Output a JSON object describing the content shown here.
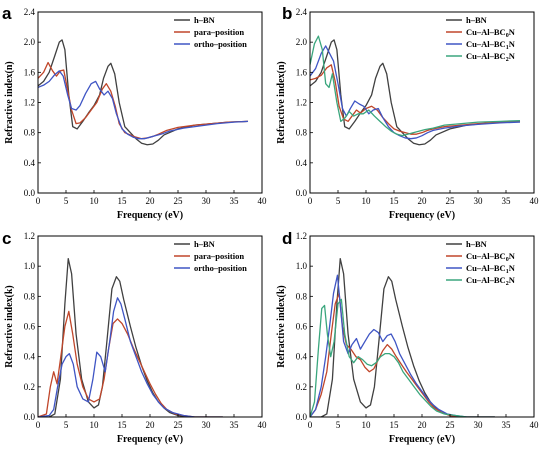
{
  "chart_data": [
    {
      "panel": "a",
      "type": "line",
      "xlabel": "Frequency (eV)",
      "ylabel": "Refractive index(n)",
      "xlim": [
        0,
        40
      ],
      "ylim": [
        0.0,
        2.4
      ],
      "xticks": [
        0,
        5,
        10,
        15,
        20,
        25,
        30,
        35,
        40
      ],
      "yticks": [
        0.0,
        0.4,
        0.8,
        1.2,
        1.6,
        2.0,
        2.4
      ],
      "legend_position": "top-right",
      "series": [
        {
          "name": "h–BN",
          "color": "#404040",
          "x": [
            0,
            1,
            2,
            3,
            3.8,
            4.3,
            4.8,
            5.5,
            6.2,
            7,
            8,
            9,
            10,
            11,
            11.7,
            12.5,
            13,
            13.7,
            14.5,
            15.5,
            16.5,
            17.5,
            18.5,
            19.5,
            20.5,
            21.5,
            22.5,
            25,
            28,
            31,
            34,
            37.5
          ],
          "y": [
            1.42,
            1.48,
            1.6,
            1.82,
            2.0,
            2.03,
            1.9,
            1.3,
            0.88,
            0.85,
            0.95,
            1.06,
            1.16,
            1.3,
            1.52,
            1.68,
            1.72,
            1.58,
            1.2,
            0.88,
            0.8,
            0.72,
            0.66,
            0.64,
            0.65,
            0.7,
            0.77,
            0.85,
            0.9,
            0.92,
            0.94,
            0.95
          ]
        },
        {
          "name": "para–position",
          "color": "#c0462a",
          "x": [
            0,
            1,
            1.8,
            2.6,
            3.3,
            4,
            4.6,
            5.2,
            6,
            6.8,
            7.5,
            8.5,
            9.5,
            10.5,
            11.5,
            12.2,
            13,
            13.8,
            14.5,
            15.5,
            16.5,
            17.5,
            18.5,
            19.5,
            20.5,
            21.5,
            23,
            25,
            28,
            31,
            34,
            37.5
          ],
          "y": [
            1.52,
            1.6,
            1.73,
            1.62,
            1.55,
            1.62,
            1.63,
            1.4,
            1.1,
            0.92,
            0.93,
            1.0,
            1.1,
            1.2,
            1.38,
            1.45,
            1.35,
            1.15,
            0.92,
            0.8,
            0.77,
            0.74,
            0.72,
            0.73,
            0.75,
            0.78,
            0.83,
            0.87,
            0.9,
            0.92,
            0.94,
            0.95
          ]
        },
        {
          "name": "ortho–position",
          "color": "#3f55c4",
          "x": [
            0,
            1,
            2,
            3,
            3.8,
            4.5,
            5.3,
            6,
            6.8,
            7.5,
            8.5,
            9.5,
            10.3,
            11,
            11.8,
            12.5,
            13.3,
            14,
            15,
            16,
            17,
            18,
            19,
            20,
            21,
            22,
            23.5,
            26,
            29,
            32,
            35,
            37.5
          ],
          "y": [
            1.4,
            1.43,
            1.48,
            1.57,
            1.62,
            1.55,
            1.3,
            1.12,
            1.1,
            1.16,
            1.32,
            1.45,
            1.48,
            1.38,
            1.3,
            1.35,
            1.25,
            1.05,
            0.85,
            0.78,
            0.74,
            0.72,
            0.72,
            0.74,
            0.76,
            0.78,
            0.82,
            0.86,
            0.89,
            0.92,
            0.94,
            0.95
          ]
        }
      ]
    },
    {
      "panel": "b",
      "type": "line",
      "xlabel": "Frequency (eV)",
      "ylabel": "Refractive index(n)",
      "xlim": [
        0,
        40
      ],
      "ylim": [
        0.0,
        2.4
      ],
      "xticks": [
        0,
        5,
        10,
        15,
        20,
        25,
        30,
        35,
        40
      ],
      "yticks": [
        0.0,
        0.4,
        0.8,
        1.2,
        1.6,
        2.0,
        2.4
      ],
      "legend_position": "top-right",
      "series": [
        {
          "name": "h–BN",
          "legend_sub": "",
          "color": "#404040",
          "x": [
            0,
            1,
            2,
            3,
            3.8,
            4.3,
            4.8,
            5.5,
            6.2,
            7,
            8,
            9,
            10,
            11,
            11.7,
            12.5,
            13,
            13.7,
            14.5,
            15.5,
            16.5,
            17.5,
            18.5,
            19.5,
            20.5,
            21.5,
            22.5,
            25,
            28,
            31,
            34,
            37.5
          ],
          "y": [
            1.42,
            1.48,
            1.6,
            1.82,
            2.0,
            2.03,
            1.9,
            1.3,
            0.88,
            0.85,
            0.95,
            1.06,
            1.16,
            1.3,
            1.52,
            1.68,
            1.72,
            1.58,
            1.2,
            0.88,
            0.8,
            0.72,
            0.66,
            0.64,
            0.65,
            0.7,
            0.77,
            0.85,
            0.9,
            0.92,
            0.94,
            0.95
          ]
        },
        {
          "name": "Cu–Al–BC",
          "legend_sub": "0",
          "legend_suffix": "N",
          "color": "#c0462a",
          "x": [
            0,
            1,
            2,
            3,
            3.8,
            4.5,
            5.2,
            6,
            6.8,
            7.5,
            8.3,
            9,
            10,
            11,
            12,
            13,
            14,
            15,
            16,
            17,
            18,
            19,
            20,
            21,
            22,
            24,
            27,
            30,
            34,
            37.5
          ],
          "y": [
            1.5,
            1.52,
            1.56,
            1.66,
            1.7,
            1.48,
            1.15,
            0.98,
            0.95,
            1.02,
            1.1,
            1.06,
            1.12,
            1.15,
            1.1,
            1.0,
            0.92,
            0.85,
            0.82,
            0.8,
            0.78,
            0.78,
            0.8,
            0.83,
            0.85,
            0.88,
            0.9,
            0.92,
            0.94,
            0.95
          ]
        },
        {
          "name": "Cu–Al–BC",
          "legend_sub": "1",
          "legend_suffix": "N",
          "color": "#3f55c4",
          "x": [
            0,
            1,
            2,
            2.8,
            3.5,
            4.2,
            5,
            5.8,
            6.5,
            7.2,
            8,
            8.8,
            9.6,
            10.5,
            11.3,
            12.2,
            13,
            14,
            15,
            16,
            17,
            18,
            19,
            20,
            21,
            22,
            24,
            27,
            30,
            34,
            37.5
          ],
          "y": [
            1.55,
            1.65,
            1.85,
            1.95,
            1.85,
            1.75,
            1.45,
            1.12,
            1.02,
            1.12,
            1.22,
            1.18,
            1.15,
            1.05,
            1.1,
            1.12,
            1.0,
            0.88,
            0.8,
            0.76,
            0.73,
            0.72,
            0.73,
            0.76,
            0.8,
            0.83,
            0.86,
            0.89,
            0.91,
            0.93,
            0.94
          ]
        },
        {
          "name": "Cu–Al–BC",
          "legend_sub": "2",
          "legend_suffix": "N",
          "color": "#3aa67d",
          "x": [
            0,
            0.8,
            1.5,
            2.2,
            2.8,
            3.4,
            4,
            4.8,
            5.5,
            6.3,
            7,
            7.8,
            8.6,
            9.5,
            10.5,
            11.5,
            12.5,
            13.5,
            14.5,
            15.5,
            16.5,
            17.5,
            18.5,
            19.5,
            20.5,
            22,
            24,
            27,
            30,
            34,
            37.5
          ],
          "y": [
            1.7,
            1.98,
            2.08,
            1.9,
            1.45,
            1.4,
            1.58,
            1.2,
            0.95,
            1.0,
            1.08,
            1.02,
            1.05,
            1.05,
            1.1,
            1.02,
            0.95,
            0.88,
            0.82,
            0.78,
            0.76,
            0.78,
            0.8,
            0.82,
            0.84,
            0.86,
            0.9,
            0.92,
            0.94,
            0.95,
            0.96
          ]
        }
      ]
    },
    {
      "panel": "c",
      "type": "line",
      "xlabel": "Frequency (eV)",
      "ylabel": "Refractive index(k)",
      "xlim": [
        0,
        40
      ],
      "ylim": [
        0.0,
        1.2
      ],
      "xticks": [
        0,
        5,
        10,
        15,
        20,
        25,
        30,
        35,
        40
      ],
      "yticks": [
        0.0,
        0.2,
        0.4,
        0.6,
        0.8,
        1.0,
        1.2
      ],
      "legend_position": "top-right",
      "series": [
        {
          "name": "h–BN",
          "color": "#404040",
          "x": [
            0,
            2,
            3,
            4,
            4.8,
            5.4,
            6,
            6.8,
            7.8,
            9,
            10,
            10.8,
            11.5,
            12.3,
            13.2,
            14,
            14.6,
            15.3,
            16.5,
            17.5,
            18.5,
            19.5,
            20.5,
            21.5,
            22.5,
            23.5,
            25,
            27,
            30,
            33
          ],
          "y": [
            0,
            0,
            0.02,
            0.25,
            0.75,
            1.05,
            0.95,
            0.55,
            0.25,
            0.1,
            0.06,
            0.08,
            0.2,
            0.5,
            0.85,
            0.93,
            0.9,
            0.78,
            0.6,
            0.46,
            0.34,
            0.24,
            0.16,
            0.1,
            0.06,
            0.03,
            0.01,
            0,
            0,
            0
          ]
        },
        {
          "name": "para–position",
          "color": "#c0462a",
          "x": [
            0,
            1.5,
            2.2,
            2.8,
            3.4,
            4,
            4.8,
            5.5,
            6.2,
            7,
            8,
            9,
            10,
            11,
            11.8,
            12.6,
            13.4,
            14.2,
            15,
            16,
            17,
            18,
            19,
            20,
            21,
            22,
            23,
            24.5,
            26,
            28,
            31,
            33
          ],
          "y": [
            0,
            0.02,
            0.2,
            0.3,
            0.22,
            0.38,
            0.6,
            0.7,
            0.55,
            0.35,
            0.2,
            0.12,
            0.1,
            0.12,
            0.25,
            0.45,
            0.62,
            0.65,
            0.62,
            0.55,
            0.46,
            0.38,
            0.3,
            0.22,
            0.15,
            0.09,
            0.05,
            0.02,
            0.01,
            0,
            0,
            0
          ]
        },
        {
          "name": "ortho–position",
          "color": "#3f55c4",
          "x": [
            0,
            2,
            2.8,
            3.5,
            4.3,
            5,
            5.6,
            6.3,
            7,
            8,
            9,
            9.8,
            10.5,
            11.2,
            12,
            12.8,
            13.5,
            14.2,
            14.8,
            15.5,
            16.5,
            17.5,
            18.5,
            19.5,
            20.5,
            21.5,
            22.5,
            24,
            26,
            28,
            31,
            33
          ],
          "y": [
            0,
            0.01,
            0.05,
            0.2,
            0.35,
            0.4,
            0.42,
            0.35,
            0.2,
            0.12,
            0.1,
            0.25,
            0.43,
            0.4,
            0.3,
            0.5,
            0.7,
            0.79,
            0.75,
            0.65,
            0.5,
            0.4,
            0.3,
            0.22,
            0.15,
            0.1,
            0.06,
            0.03,
            0.01,
            0,
            0,
            0
          ]
        }
      ]
    },
    {
      "panel": "d",
      "type": "line",
      "xlabel": "Frequency (eV)",
      "ylabel": "Refractive index(k)",
      "xlim": [
        0,
        40
      ],
      "ylim": [
        0.0,
        1.2
      ],
      "xticks": [
        0,
        5,
        10,
        15,
        20,
        25,
        30,
        35,
        40
      ],
      "yticks": [
        0.0,
        0.2,
        0.4,
        0.6,
        0.8,
        1.0,
        1.2
      ],
      "legend_position": "top-right",
      "series": [
        {
          "name": "h–BN",
          "legend_sub": "",
          "color": "#404040",
          "x": [
            0,
            2,
            3,
            4,
            4.8,
            5.4,
            6,
            6.8,
            7.8,
            9,
            10,
            10.8,
            11.5,
            12.3,
            13.2,
            14,
            14.6,
            15.3,
            16.5,
            17.5,
            18.5,
            19.5,
            20.5,
            21.5,
            22.5,
            23.5,
            25,
            27,
            30,
            33
          ],
          "y": [
            0,
            0,
            0.02,
            0.25,
            0.75,
            1.05,
            0.95,
            0.55,
            0.25,
            0.1,
            0.06,
            0.08,
            0.2,
            0.5,
            0.85,
            0.93,
            0.9,
            0.78,
            0.6,
            0.46,
            0.34,
            0.24,
            0.16,
            0.1,
            0.06,
            0.03,
            0.01,
            0,
            0,
            0
          ]
        },
        {
          "name": "Cu–Al–BC",
          "legend_sub": "0",
          "legend_suffix": "N",
          "color": "#c0462a",
          "x": [
            0,
            1,
            2,
            3,
            3.8,
            4.5,
            5.2,
            5.8,
            6.5,
            7.3,
            8.2,
            9,
            9.8,
            10.6,
            11.4,
            12.2,
            13,
            13.8,
            14.6,
            15.4,
            16.3,
            17.2,
            18.2,
            19.2,
            20.2,
            21.2,
            22.2,
            23.5,
            25,
            27,
            30,
            33
          ],
          "y": [
            0,
            0.05,
            0.15,
            0.3,
            0.55,
            0.75,
            0.82,
            0.6,
            0.48,
            0.45,
            0.4,
            0.38,
            0.33,
            0.3,
            0.32,
            0.38,
            0.44,
            0.48,
            0.45,
            0.4,
            0.35,
            0.3,
            0.25,
            0.2,
            0.15,
            0.1,
            0.06,
            0.03,
            0.01,
            0,
            0,
            0
          ]
        },
        {
          "name": "Cu–Al–BC",
          "legend_sub": "1",
          "legend_suffix": "N",
          "color": "#3f55c4",
          "x": [
            0,
            1,
            2,
            2.8,
            3.5,
            4.2,
            4.9,
            5.4,
            6,
            6.8,
            7.5,
            8.3,
            9,
            9.8,
            10.6,
            11.4,
            12.2,
            13,
            13.8,
            14.5,
            15.2,
            16,
            17,
            18,
            19,
            20,
            21,
            22,
            23,
            24.5,
            26,
            28,
            31,
            33
          ],
          "y": [
            0,
            0.05,
            0.2,
            0.4,
            0.6,
            0.82,
            0.94,
            0.75,
            0.5,
            0.42,
            0.48,
            0.52,
            0.45,
            0.5,
            0.55,
            0.58,
            0.56,
            0.5,
            0.54,
            0.55,
            0.5,
            0.42,
            0.35,
            0.28,
            0.22,
            0.17,
            0.12,
            0.08,
            0.05,
            0.02,
            0.01,
            0,
            0,
            0
          ]
        },
        {
          "name": "Cu–Al–BC",
          "legend_sub": "2",
          "legend_suffix": "N",
          "color": "#3aa67d",
          "x": [
            0,
            0.8,
            1.5,
            2.1,
            2.6,
            3.1,
            3.7,
            4.3,
            5,
            5.6,
            6.2,
            7,
            7.8,
            8.6,
            9.4,
            10.2,
            11,
            11.8,
            12.6,
            13.4,
            14.2,
            15,
            15.8,
            16.6,
            17.6,
            18.6,
            19.6,
            20.6,
            21.6,
            22.6,
            24,
            26,
            28,
            31,
            33
          ],
          "y": [
            0,
            0.1,
            0.45,
            0.72,
            0.74,
            0.55,
            0.4,
            0.5,
            0.75,
            0.78,
            0.55,
            0.4,
            0.36,
            0.4,
            0.38,
            0.35,
            0.34,
            0.36,
            0.4,
            0.42,
            0.42,
            0.4,
            0.36,
            0.3,
            0.25,
            0.2,
            0.15,
            0.11,
            0.07,
            0.04,
            0.02,
            0.01,
            0,
            0,
            0
          ]
        }
      ]
    }
  ]
}
